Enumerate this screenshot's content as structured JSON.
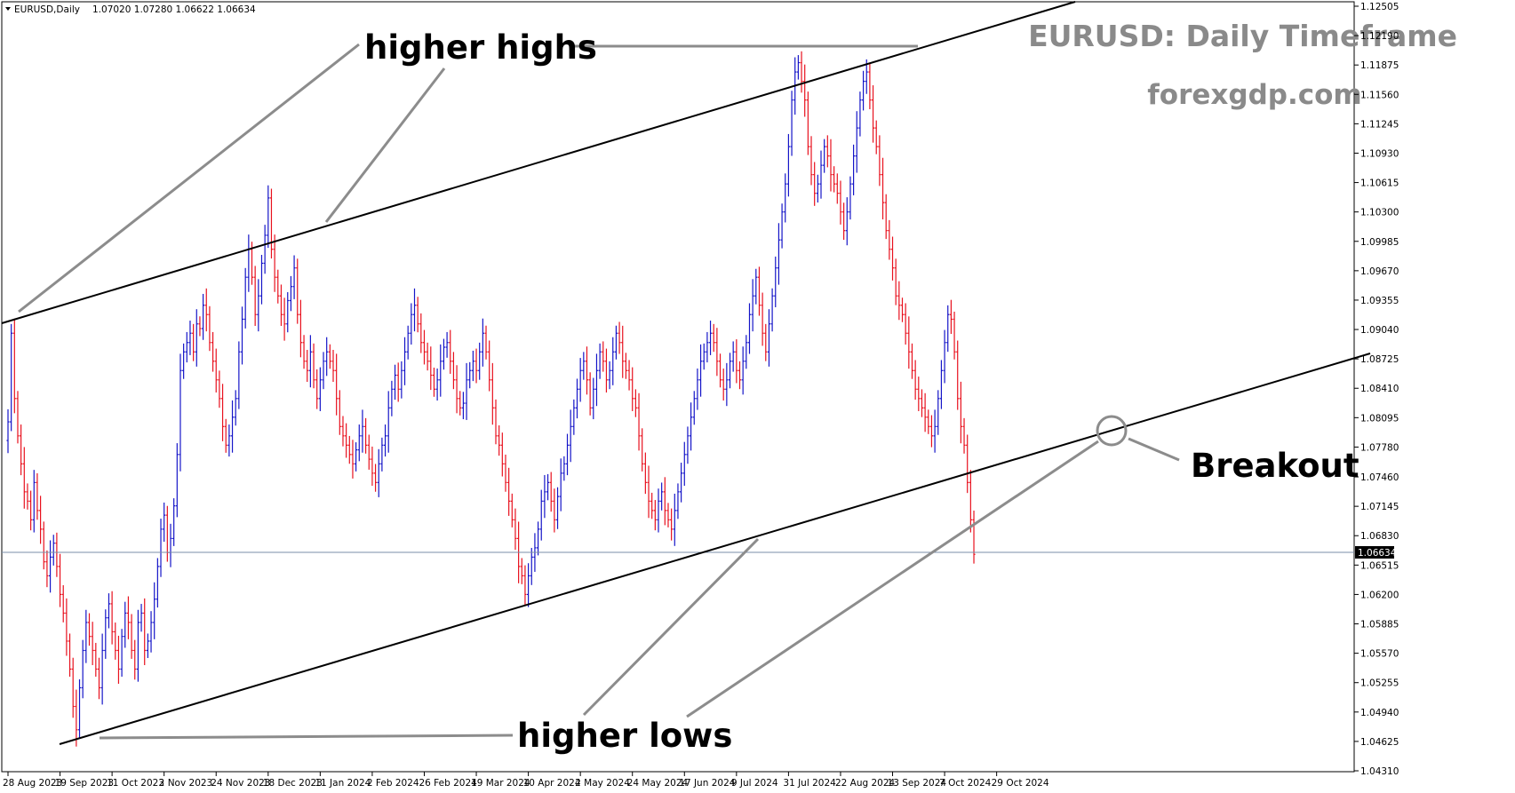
{
  "header": {
    "symbol": "EURUSD,Daily",
    "ohlc": "1.07020 1.07280 1.06622 1.06634"
  },
  "watermark": {
    "title": "EURUSD: Daily Timeframe",
    "site": "forexgdp.com"
  },
  "annotations": {
    "higher_highs": "higher highs",
    "higher_lows": "higher lows",
    "breakout": "Breakout"
  },
  "colors": {
    "bull": "#1515c8",
    "bear": "#e8111e",
    "trendline": "#000000",
    "pointer": "#8c8c8c",
    "current_price_line": "#7a8ea8",
    "current_price_tag": "#000000",
    "watermark": "#8a8a8a"
  },
  "chart_data": {
    "type": "candlestick",
    "symbol": "EURUSD",
    "timeframe": "Daily",
    "current_price": 1.06634,
    "current_price_label": "1.06634",
    "ylim": [
      1.0431,
      1.12505
    ],
    "y_ticks": [
      "1.12505",
      "1.12190",
      "1.11875",
      "1.11560",
      "1.11245",
      "1.10930",
      "1.10615",
      "1.10300",
      "1.09985",
      "1.09670",
      "1.09355",
      "1.09040",
      "1.08725",
      "1.08410",
      "1.08095",
      "1.07780",
      "1.07460",
      "1.07145",
      "1.06830",
      "1.06515",
      "1.06200",
      "1.05885",
      "1.05570",
      "1.05255",
      "1.04940",
      "1.04625",
      "1.04310"
    ],
    "x_ticks": [
      "28 Aug 2023",
      "19 Sep 2023",
      "11 Oct 2023",
      "2 Nov 2023",
      "24 Nov 2023",
      "18 Dec 2023",
      "11 Jan 2024",
      "2 Feb 2024",
      "26 Feb 2024",
      "19 Mar 2024",
      "10 Apr 2024",
      "2 May 2024",
      "24 May 2024",
      "17 Jun 2024",
      "9 Jul 2024",
      "31 Jul 2024",
      "22 Aug 2024",
      "13 Sep 2024",
      "7 Oct 2024",
      "29 Oct 2024"
    ],
    "x_tick_index": [
      0,
      16,
      32,
      48,
      64,
      80,
      96,
      112,
      128,
      144,
      160,
      176,
      192,
      208,
      224,
      240,
      256,
      272,
      288,
      304
    ],
    "closes": [
      1.0805,
      1.09,
      1.083,
      1.079,
      1.076,
      1.073,
      1.072,
      1.07,
      1.074,
      1.071,
      1.069,
      1.0655,
      1.064,
      1.066,
      1.0675,
      1.065,
      1.062,
      1.06,
      1.057,
      1.054,
      1.05,
      1.0475,
      1.052,
      1.056,
      1.059,
      1.0575,
      1.056,
      1.054,
      1.052,
      1.056,
      1.0595,
      1.061,
      1.058,
      1.056,
      1.054,
      1.0575,
      1.06,
      1.059,
      1.056,
      1.054,
      1.059,
      1.06,
      1.056,
      1.057,
      1.059,
      1.0615,
      1.065,
      1.069,
      1.0705,
      1.0665,
      1.068,
      1.0715,
      1.077,
      1.086,
      1.088,
      1.089,
      1.09,
      1.088,
      1.091,
      1.0905,
      1.093,
      1.092,
      1.089,
      1.087,
      1.085,
      1.083,
      1.08,
      1.078,
      1.079,
      1.081,
      1.083,
      1.088,
      1.0915,
      1.096,
      1.099,
      1.096,
      1.092,
      1.094,
      1.0975,
      1.1005,
      1.1045,
      1.099,
      1.096,
      1.094,
      1.092,
      1.091,
      1.0935,
      1.095,
      1.097,
      1.092,
      1.089,
      1.087,
      1.086,
      1.088,
      1.085,
      1.083,
      1.085,
      1.087,
      1.088,
      1.087,
      1.086,
      1.083,
      1.08,
      1.079,
      1.078,
      1.077,
      1.076,
      1.0775,
      1.079,
      1.08,
      1.078,
      1.0765,
      1.075,
      1.074,
      1.076,
      1.078,
      1.079,
      1.082,
      1.084,
      1.0855,
      1.084,
      1.086,
      1.088,
      1.09,
      1.092,
      1.093,
      1.091,
      1.089,
      1.088,
      1.087,
      1.0855,
      1.084,
      1.085,
      1.087,
      1.0885,
      1.089,
      1.087,
      1.085,
      1.083,
      1.082,
      1.0825,
      1.085,
      1.086,
      1.087,
      1.086,
      1.088,
      1.09,
      1.088,
      1.085,
      1.082,
      1.079,
      1.078,
      1.076,
      1.074,
      1.072,
      1.07,
      1.068,
      1.065,
      1.064,
      1.062,
      1.064,
      1.066,
      1.067,
      1.069,
      1.072,
      1.073,
      1.074,
      1.072,
      1.07,
      1.0725,
      1.075,
      1.076,
      1.078,
      1.08,
      1.082,
      1.084,
      1.086,
      1.087,
      1.085,
      1.082,
      1.084,
      1.086,
      1.088,
      1.087,
      1.085,
      1.086,
      1.088,
      1.09,
      1.089,
      1.087,
      1.086,
      1.085,
      1.083,
      1.082,
      1.079,
      1.076,
      1.074,
      1.072,
      1.071,
      1.07,
      1.072,
      1.073,
      1.071,
      1.07,
      1.069,
      1.071,
      1.073,
      1.075,
      1.077,
      1.079,
      1.081,
      1.083,
      1.085,
      1.087,
      1.088,
      1.089,
      1.09,
      1.089,
      1.087,
      1.085,
      1.084,
      1.085,
      1.087,
      1.088,
      1.086,
      1.085,
      1.087,
      1.089,
      1.092,
      1.094,
      1.096,
      1.093,
      1.09,
      1.088,
      1.091,
      1.094,
      1.097,
      1.1,
      1.103,
      1.106,
      1.11,
      1.115,
      1.118,
      1.119,
      1.117,
      1.115,
      1.11,
      1.107,
      1.105,
      1.106,
      1.108,
      1.11,
      1.109,
      1.107,
      1.106,
      1.105,
      1.103,
      1.101,
      1.103,
      1.106,
      1.109,
      1.112,
      1.115,
      1.117,
      1.118,
      1.115,
      1.112,
      1.11,
      1.107,
      1.104,
      1.101,
      1.099,
      1.097,
      1.094,
      1.093,
      1.092,
      1.09,
      1.088,
      1.086,
      1.084,
      1.083,
      1.082,
      1.081,
      1.08,
      1.079,
      1.08,
      1.083,
      1.086,
      1.089,
      1.092,
      1.0915,
      1.088,
      1.083,
      1.08,
      1.078,
      1.074,
      1.07,
      1.0663
    ]
  }
}
